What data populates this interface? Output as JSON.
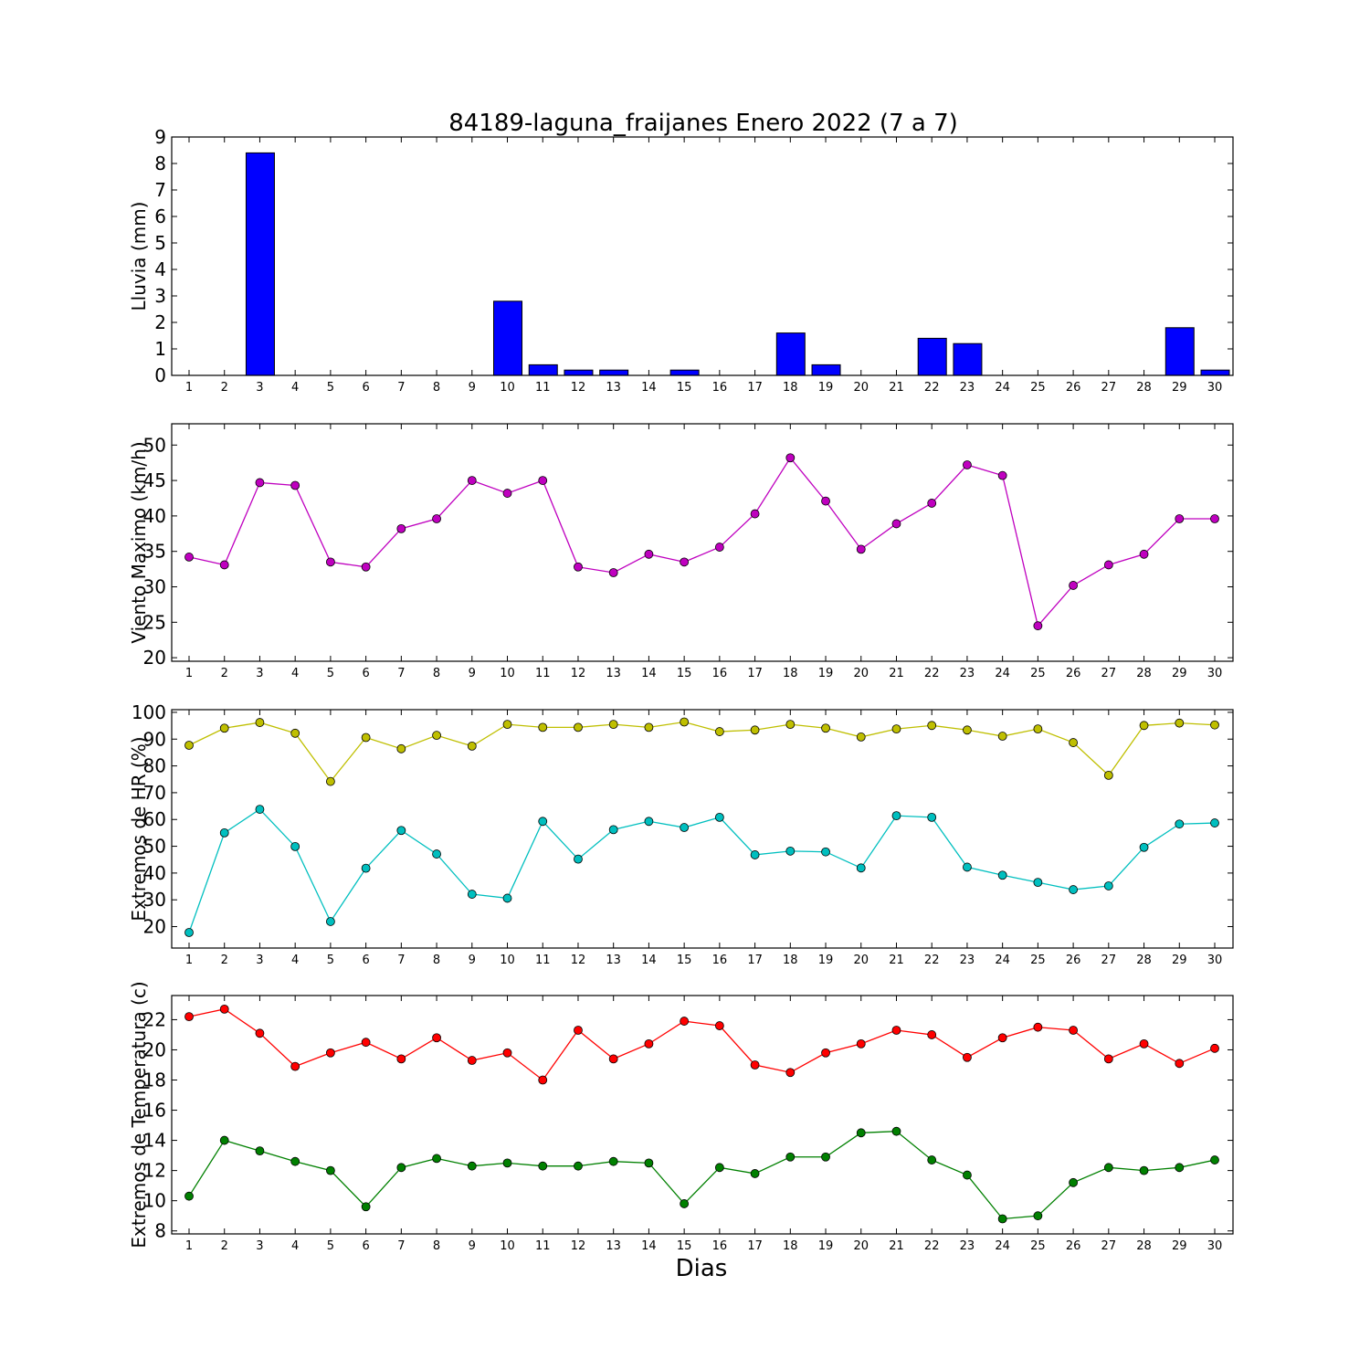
{
  "title": "84189-laguna_fraijanes Enero 2022  (7 a 7)",
  "xlabel": "Dias",
  "colors": {
    "rain_bar": "#0000ff",
    "wind": "#bf00bf",
    "hr_max": "#bfbf00",
    "hr_min": "#00bfbf",
    "temp_max": "#ff0000",
    "temp_min": "#008000"
  },
  "chart_data": [
    {
      "type": "bar",
      "ylabel": "Lluvia (mm)",
      "categories": [
        1,
        2,
        3,
        4,
        5,
        6,
        7,
        8,
        9,
        10,
        11,
        12,
        13,
        14,
        15,
        16,
        17,
        18,
        19,
        20,
        21,
        22,
        23,
        24,
        25,
        26,
        27,
        28,
        29,
        30
      ],
      "values": [
        0,
        0,
        8.4,
        0,
        0,
        0,
        0,
        0,
        0,
        2.8,
        0.4,
        0.2,
        0.2,
        0,
        0.2,
        0,
        0,
        1.6,
        0.4,
        0,
        0,
        1.4,
        1.2,
        0,
        0,
        0,
        0,
        0,
        1.8,
        0.2
      ],
      "ylim": [
        0,
        9
      ],
      "yticks": [
        0,
        1,
        2,
        3,
        4,
        5,
        6,
        7,
        8,
        9
      ],
      "grid": false
    },
    {
      "type": "line",
      "ylabel": "Viento Maximo (km/h)",
      "x": [
        1,
        2,
        3,
        4,
        5,
        6,
        7,
        8,
        9,
        10,
        11,
        12,
        13,
        14,
        15,
        16,
        17,
        18,
        19,
        20,
        21,
        22,
        23,
        24,
        25,
        26,
        27,
        28,
        29,
        30
      ],
      "series": [
        {
          "values": [
            34.2,
            33.1,
            44.7,
            44.3,
            33.5,
            32.8,
            38.2,
            39.6,
            45.0,
            43.2,
            45.0,
            32.8,
            32.0,
            34.6,
            33.5,
            35.6,
            40.3,
            48.2,
            42.1,
            35.3,
            38.9,
            41.8,
            47.2,
            45.7,
            24.5,
            30.2,
            33.1,
            34.6,
            39.6,
            39.6
          ]
        }
      ],
      "ylim": [
        19.5,
        53
      ],
      "yticks": [
        20,
        25,
        30,
        35,
        40,
        45,
        50
      ],
      "grid": false
    },
    {
      "type": "line",
      "ylabel": "Extremos de HR (%)",
      "x": [
        1,
        2,
        3,
        4,
        5,
        6,
        7,
        8,
        9,
        10,
        11,
        12,
        13,
        14,
        15,
        16,
        17,
        18,
        19,
        20,
        21,
        22,
        23,
        24,
        25,
        26,
        27,
        28,
        29,
        30
      ],
      "series": [
        {
          "values": [
            87.7,
            94.1,
            96.2,
            92.2,
            74.2,
            90.6,
            86.4,
            91.4,
            87.4,
            95.5,
            94.4,
            94.4,
            95.5,
            94.4,
            96.4,
            92.8,
            93.4,
            95.5,
            94.1,
            90.8,
            93.8,
            95.1,
            93.4,
            91.1,
            93.8,
            88.7,
            76.5,
            95.1,
            96.0,
            95.3
          ]
        },
        {
          "values": [
            17.8,
            55.0,
            63.8,
            49.9,
            21.9,
            41.8,
            55.9,
            47.1,
            32.1,
            30.6,
            59.3,
            45.2,
            56.2,
            59.3,
            57.0,
            60.8,
            46.8,
            48.2,
            47.9,
            41.9,
            61.4,
            60.8,
            42.2,
            39.2,
            36.5,
            33.8,
            35.2,
            49.6,
            58.3,
            58.7
          ]
        }
      ],
      "ylim": [
        12,
        101
      ],
      "yticks": [
        20,
        30,
        40,
        50,
        60,
        70,
        80,
        90,
        100
      ],
      "grid": false
    },
    {
      "type": "line",
      "ylabel": "Extremos de Temperatura (c)",
      "x": [
        1,
        2,
        3,
        4,
        5,
        6,
        7,
        8,
        9,
        10,
        11,
        12,
        13,
        14,
        15,
        16,
        17,
        18,
        19,
        20,
        21,
        22,
        23,
        24,
        25,
        26,
        27,
        28,
        29,
        30
      ],
      "series": [
        {
          "values": [
            22.2,
            22.7,
            21.1,
            18.9,
            19.8,
            20.5,
            19.4,
            20.8,
            19.3,
            19.8,
            18.0,
            21.3,
            19.4,
            20.4,
            21.9,
            21.6,
            19.0,
            18.5,
            19.8,
            20.4,
            21.3,
            21.0,
            19.5,
            20.8,
            21.5,
            21.3,
            19.4,
            20.4,
            19.1,
            20.1
          ]
        },
        {
          "values": [
            10.3,
            14.0,
            13.3,
            12.6,
            12.0,
            9.6,
            12.2,
            12.8,
            12.3,
            12.5,
            12.3,
            12.3,
            12.6,
            12.5,
            9.8,
            12.2,
            11.8,
            12.9,
            12.9,
            14.5,
            14.6,
            12.7,
            11.7,
            8.8,
            9.0,
            11.2,
            12.2,
            12.0,
            12.2,
            12.7
          ]
        }
      ],
      "ylim": [
        7.8,
        23.6
      ],
      "yticks": [
        8,
        10,
        12,
        14,
        16,
        18,
        20,
        22
      ],
      "grid": false
    }
  ]
}
